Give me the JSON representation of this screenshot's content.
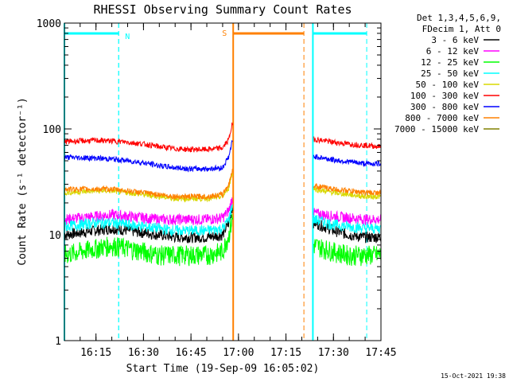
{
  "chart_data": {
    "type": "line",
    "title": "RHESSI Observing Summary Count Rates",
    "xlabel": "Start Time (19-Sep-09 16:05:02)",
    "ylabel": "Count Rate (s⁻¹ detector⁻¹)",
    "yscale": "log",
    "ylim": [
      1,
      1000
    ],
    "xlim": [
      "16:05:02",
      "17:45:00"
    ],
    "x_ticks": [
      "16:15",
      "16:30",
      "16:45",
      "17:00",
      "17:15",
      "17:30",
      "17:45"
    ],
    "y_ticks": [
      "1",
      "10",
      "100",
      "1000"
    ],
    "legend_header": [
      "Det 1,3,4,5,6,9,",
      "FDecim 1, Att 0"
    ],
    "legend_position": "right",
    "timestamp": "15-Oct-2021 19:38",
    "intervals": [
      {
        "label": "",
        "kind": "saa",
        "start": "16:05:02",
        "end": "16:22:10",
        "color": "#00ffff"
      },
      {
        "label": "N",
        "kind": "night-marker",
        "time": "16:22:10",
        "color": "#00ffff"
      },
      {
        "label": "S",
        "kind": "saa",
        "start": "16:58:20",
        "end": "17:20:40",
        "color": "#ff8000"
      },
      {
        "label": "",
        "kind": "night",
        "start": "17:23:30",
        "end": "17:40:30",
        "color": "#00ffff"
      }
    ],
    "gap": {
      "start": "16:58:20",
      "end": "17:23:30"
    },
    "series": [
      {
        "name": "3 - 6 keV",
        "color": "#000000",
        "x": [
          "16:05",
          "16:15",
          "16:20",
          "16:25",
          "16:30",
          "16:35",
          "16:40",
          "16:45",
          "16:50",
          "16:55",
          "16:57",
          "16:58",
          "17:24",
          "17:30",
          "17:35",
          "17:40",
          "17:45"
        ],
        "y": [
          10,
          11,
          11.5,
          11,
          10.5,
          10,
          9.5,
          9.5,
          9.5,
          10,
          13,
          18,
          13,
          11,
          10,
          9.5,
          9.5
        ]
      },
      {
        "name": "6 - 12 keV",
        "color": "#ff00ff",
        "x": [
          "16:05",
          "16:15",
          "16:20",
          "16:25",
          "16:30",
          "16:35",
          "16:40",
          "16:45",
          "16:50",
          "16:55",
          "16:57",
          "16:58",
          "17:24",
          "17:30",
          "17:35",
          "17:40",
          "17:45"
        ],
        "y": [
          14,
          15,
          15.5,
          15,
          14.5,
          14,
          14,
          14,
          14,
          14.5,
          17,
          22,
          16,
          15,
          14.5,
          14,
          14
        ]
      },
      {
        "name": "12 - 25 keV",
        "color": "#00ff00",
        "x": [
          "16:05",
          "16:15",
          "16:20",
          "16:25",
          "16:30",
          "16:35",
          "16:40",
          "16:45",
          "16:50",
          "16:55",
          "16:57",
          "16:58",
          "17:24",
          "17:30",
          "17:35",
          "17:40",
          "17:45"
        ],
        "y": [
          6.5,
          7.5,
          8,
          7.5,
          7,
          6.5,
          6.5,
          6.5,
          6.5,
          7,
          10,
          14,
          8,
          7,
          6.5,
          6.5,
          6.5
        ]
      },
      {
        "name": "25 - 50 keV",
        "color": "#00ffff",
        "x": [
          "16:05",
          "16:15",
          "16:20",
          "16:25",
          "16:30",
          "16:35",
          "16:40",
          "16:45",
          "16:50",
          "16:55",
          "16:57",
          "16:58",
          "17:24",
          "17:30",
          "17:35",
          "17:40",
          "17:45"
        ],
        "y": [
          12,
          13,
          13,
          12.5,
          12,
          11.5,
          11,
          11,
          11,
          11.5,
          14,
          19,
          14,
          12.5,
          12,
          11.5,
          11.5
        ]
      },
      {
        "name": "50 - 100 keV",
        "color": "#d8d800",
        "x": [
          "16:05",
          "16:15",
          "16:20",
          "16:25",
          "16:30",
          "16:35",
          "16:40",
          "16:45",
          "16:50",
          "16:55",
          "16:57",
          "16:58",
          "17:24",
          "17:30",
          "17:35",
          "17:40",
          "17:45"
        ],
        "y": [
          25,
          26,
          26,
          25,
          24,
          23,
          22,
          22,
          22,
          23,
          28,
          38,
          27,
          25,
          24,
          23,
          23
        ]
      },
      {
        "name": "100 - 300 keV",
        "color": "#ff0000",
        "x": [
          "16:05",
          "16:15",
          "16:20",
          "16:25",
          "16:30",
          "16:35",
          "16:40",
          "16:45",
          "16:50",
          "16:55",
          "16:57",
          "16:58",
          "17:24",
          "17:30",
          "17:35",
          "17:40",
          "17:45"
        ],
        "y": [
          76,
          78,
          77,
          75,
          72,
          68,
          65,
          64,
          64,
          66,
          80,
          110,
          80,
          75,
          72,
          70,
          68
        ]
      },
      {
        "name": "300 - 800 keV",
        "color": "#0000ff",
        "x": [
          "16:05",
          "16:15",
          "16:20",
          "16:25",
          "16:30",
          "16:35",
          "16:40",
          "16:45",
          "16:50",
          "16:55",
          "16:57",
          "16:58",
          "17:24",
          "17:30",
          "17:35",
          "17:40",
          "17:45"
        ],
        "y": [
          54,
          53,
          52,
          50,
          48,
          45,
          43,
          42,
          42,
          43,
          55,
          75,
          55,
          51,
          49,
          47,
          47
        ]
      },
      {
        "name": "800 - 7000 keV",
        "color": "#ff8000",
        "x": [
          "16:05",
          "16:15",
          "16:20",
          "16:25",
          "16:30",
          "16:35",
          "16:40",
          "16:45",
          "16:50",
          "16:55",
          "16:57",
          "16:58",
          "17:24",
          "17:30",
          "17:35",
          "17:40",
          "17:45"
        ],
        "y": [
          27,
          27,
          27,
          26,
          25,
          24,
          23,
          23,
          23,
          24,
          30,
          40,
          29,
          27,
          26,
          25,
          25
        ]
      },
      {
        "name": "7000 - 15000 keV",
        "color": "#808000",
        "x": [],
        "y": []
      }
    ]
  }
}
